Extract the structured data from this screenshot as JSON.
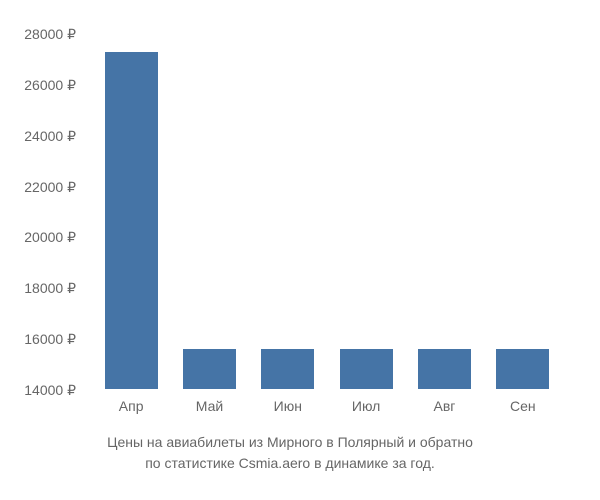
{
  "chart": {
    "type": "bar",
    "categories": [
      "Апр",
      "Май",
      "Июн",
      "Июл",
      "Авг",
      "Сен"
    ],
    "values": [
      26800,
      15500,
      15500,
      15500,
      15500,
      15500
    ],
    "bar_color": "#4574a6",
    "y_ticks": [
      28000,
      26000,
      24000,
      22000,
      20000,
      18000,
      16000,
      14000
    ],
    "y_tick_labels": [
      "28000 ₽",
      "26000 ₽",
      "24000 ₽",
      "22000 ₽",
      "20000 ₽",
      "18000 ₽",
      "16000 ₽",
      "14000 ₽"
    ],
    "ylim": [
      14000,
      28000
    ],
    "background_color": "#ffffff",
    "axis_text_color": "#666666",
    "axis_fontsize": 14,
    "bar_width": 0.68,
    "caption_color": "#666666",
    "caption_fontsize": 14
  },
  "caption": {
    "line1": "Цены на авиабилеты из Мирного в Полярный и обратно",
    "line2": "по статистике Csmia.aero в динамике за год."
  }
}
